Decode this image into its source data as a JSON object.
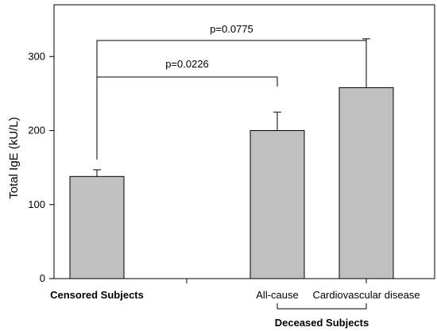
{
  "chart_data": {
    "type": "bar",
    "title": "",
    "xlabel": "",
    "ylabel": "Total IgE (kU/L)",
    "ylim": [
      0,
      370
    ],
    "yticks": [
      0,
      100,
      200,
      300
    ],
    "categories": [
      "Censored Subjects",
      "All-cause",
      "Cardiovascular disease"
    ],
    "values": [
      138,
      200,
      258
    ],
    "errors": [
      9,
      25,
      66
    ],
    "bar_color": "#c0c0c0",
    "group_label": "Deceased Subjects",
    "comparisons": [
      {
        "label": "p=0.0226",
        "from": "Censored Subjects",
        "to": "All-cause"
      },
      {
        "label": "p=0.0775",
        "from": "Censored Subjects",
        "to": "Cardiovascular disease"
      }
    ]
  }
}
